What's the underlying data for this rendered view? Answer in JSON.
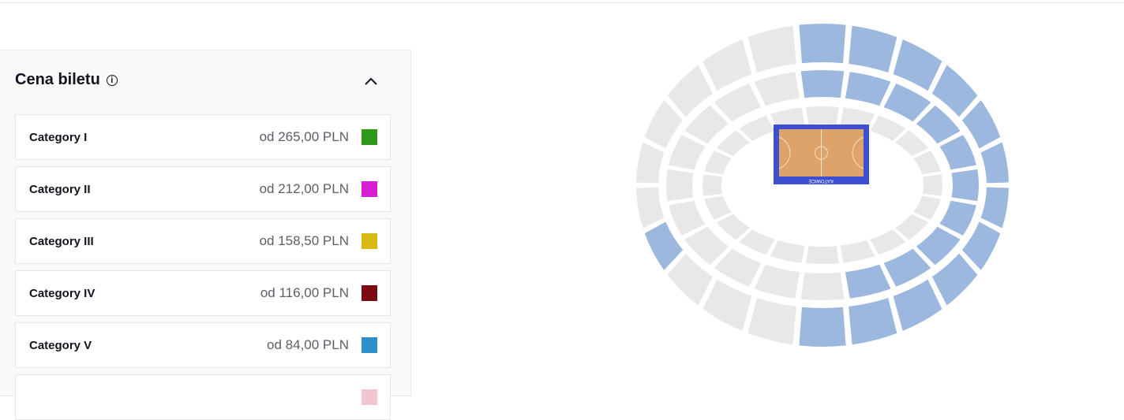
{
  "price_panel": {
    "title": "Cena biletu",
    "info_icon": "info-circle-icon",
    "collapse_icon": "chevron-up-icon",
    "categories": [
      {
        "label": "Category I",
        "price": "od 265,00 PLN",
        "color": "#2e9a18"
      },
      {
        "label": "Category II",
        "price": "od 212,00 PLN",
        "color": "#d81fd2"
      },
      {
        "label": "Category III",
        "price": "od 158,50 PLN",
        "color": "#d9b914"
      },
      {
        "label": "Category IV",
        "price": "od 116,00 PLN",
        "color": "#7a0a14"
      },
      {
        "label": "Category V",
        "price": "od 84,00 PLN",
        "color": "#2e8fcc"
      },
      {
        "label": "",
        "price": "",
        "color": "#f3c6cf"
      }
    ]
  },
  "seat_map": {
    "court_logo": "KATOWICE",
    "colors": {
      "available": "#9db8de",
      "unavailable": "#e8e8e8",
      "court_border": "#3d4fcf",
      "court_floor": "#dca46a"
    },
    "rings": [
      {
        "available": [
          0,
          0,
          0,
          0,
          0,
          0,
          0,
          0,
          0,
          0,
          0,
          0,
          0,
          0,
          0,
          0,
          0,
          0,
          0,
          0
        ]
      },
      {
        "available": [
          1,
          1,
          1,
          1,
          1,
          1,
          1,
          1,
          1,
          0,
          0,
          0,
          0,
          0,
          0,
          0,
          0,
          0,
          0,
          1
        ]
      },
      {
        "available": [
          1,
          1,
          1,
          1,
          1,
          1,
          1,
          1,
          1,
          1,
          1,
          0,
          0,
          0,
          1,
          0,
          0,
          0,
          0,
          0,
          0,
          1
        ]
      }
    ]
  }
}
